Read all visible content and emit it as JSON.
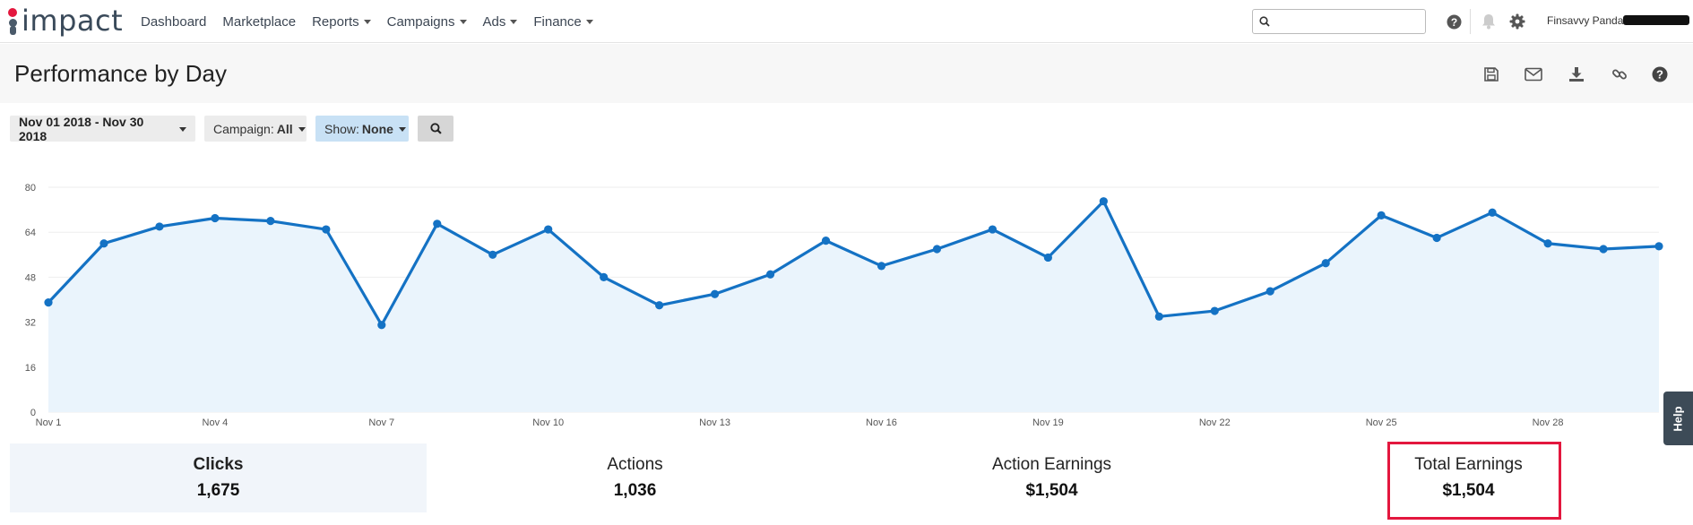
{
  "app": {
    "logo_text": "impact"
  },
  "nav": {
    "items": [
      {
        "label": "Dashboard",
        "dropdown": false
      },
      {
        "label": "Marketplace",
        "dropdown": false
      },
      {
        "label": "Reports",
        "dropdown": true
      },
      {
        "label": "Campaigns",
        "dropdown": true
      },
      {
        "label": "Ads",
        "dropdown": true
      },
      {
        "label": "Finance",
        "dropdown": true
      }
    ]
  },
  "search": {
    "value": "",
    "placeholder": ""
  },
  "user": {
    "name": "Finsavvy Panda"
  },
  "page": {
    "title": "Performance by Day"
  },
  "toolbar": {
    "icons": [
      "save-icon",
      "email-icon",
      "download-icon",
      "link-icon",
      "help-icon"
    ]
  },
  "filters": {
    "date_range": "Nov 01 2018 - Nov 30 2018",
    "campaign_label": "Campaign:",
    "campaign_value": "All",
    "show_label": "Show:",
    "show_value": "None"
  },
  "chart_data": {
    "type": "area",
    "x": [
      "Nov 1",
      "Nov 2",
      "Nov 3",
      "Nov 4",
      "Nov 5",
      "Nov 6",
      "Nov 7",
      "Nov 8",
      "Nov 9",
      "Nov 10",
      "Nov 11",
      "Nov 12",
      "Nov 13",
      "Nov 14",
      "Nov 15",
      "Nov 16",
      "Nov 17",
      "Nov 18",
      "Nov 19",
      "Nov 20",
      "Nov 21",
      "Nov 22",
      "Nov 23",
      "Nov 24",
      "Nov 25",
      "Nov 26",
      "Nov 27",
      "Nov 28",
      "Nov 29",
      "Nov 30"
    ],
    "values": [
      39,
      60,
      66,
      69,
      68,
      65,
      31,
      67,
      56,
      65,
      48,
      38,
      42,
      49,
      61,
      52,
      58,
      65,
      55,
      75,
      34,
      36,
      43,
      53,
      70,
      62,
      71,
      60,
      58,
      59
    ],
    "x_tick_labels": [
      "Nov 1",
      "Nov 4",
      "Nov 7",
      "Nov 10",
      "Nov 13",
      "Nov 16",
      "Nov 19",
      "Nov 22",
      "Nov 25",
      "Nov 28"
    ],
    "y_ticks": [
      0,
      16,
      32,
      48,
      64,
      80
    ],
    "ylim": [
      0,
      80
    ],
    "grid": true,
    "color": "#1472c4",
    "fill": "#eaf4fc"
  },
  "stats": [
    {
      "label": "Clicks",
      "value": "1,675"
    },
    {
      "label": "Actions",
      "value": "1,036"
    },
    {
      "label": "Action Earnings",
      "value": "$1,504"
    },
    {
      "label": "Total Earnings",
      "value": "$1,504"
    }
  ],
  "help_tab": {
    "label": "Help"
  }
}
